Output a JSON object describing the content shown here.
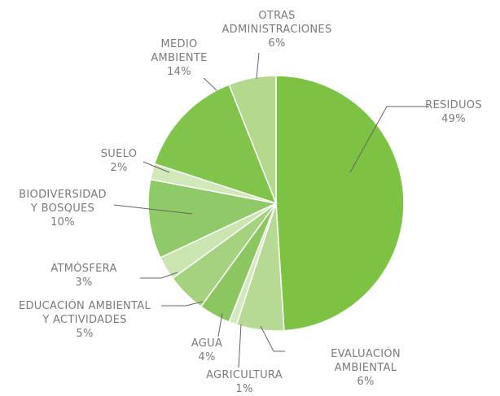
{
  "chart_data": {
    "type": "pie",
    "categories": [
      "RESIDUOS",
      "EVALUACIÓN AMBIENTAL",
      "AGRICULTURA",
      "AGUA",
      "EDUCACIÓN AMBIENTAL\nY ACTIVIDADES",
      "ATMÓSFERA",
      "BIODIVERSIDAD\nY BOSQUES",
      "SUELO",
      "MEDIO\nAMBIENTE",
      "OTRAS\nADMINISTRACIONES"
    ],
    "values": [
      49,
      6,
      1,
      4,
      5,
      3,
      10,
      2,
      14,
      6
    ],
    "value_labels": [
      "49%",
      "6%",
      "1%",
      "4%",
      "5%",
      "3%",
      "10%",
      "2%",
      "14%",
      "6%"
    ],
    "colors": [
      "#7dc242",
      "#b6da93",
      "#d3e9bd",
      "#8cc660",
      "#a5d27e",
      "#cbe5b0",
      "#90c967",
      "#d1e8b8",
      "#80c44c",
      "#b3d98e"
    ]
  }
}
